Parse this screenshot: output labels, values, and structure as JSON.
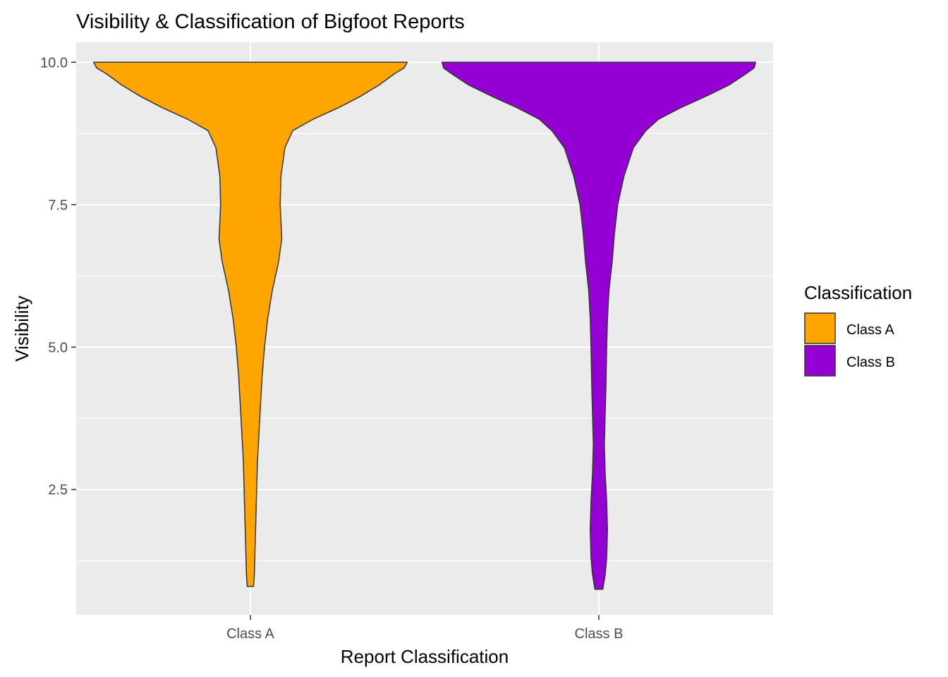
{
  "chart_data": {
    "type": "violin",
    "title": "Visibility & Classification of Bigfoot Reports",
    "xlabel": "Report Classification",
    "ylabel": "Visibility",
    "categories": [
      "Class A",
      "Class B"
    ],
    "ylim": [
      0.3,
      10.35
    ],
    "yticks": [
      2.5,
      5.0,
      7.5,
      10.0
    ],
    "ytick_labels": [
      "2.5",
      "5.0",
      "7.5",
      "10.0"
    ],
    "grid": true,
    "legend": {
      "title": "Classification",
      "placement": "right",
      "entries": [
        "Class A",
        "Class B"
      ]
    },
    "series": [
      {
        "name": "Class A",
        "color": "#FFA500",
        "range": [
          0.8,
          10.0
        ],
        "density_profile": [
          [
            0.8,
            0.02
          ],
          [
            1.0,
            0.025
          ],
          [
            1.5,
            0.03
          ],
          [
            2.0,
            0.035
          ],
          [
            2.5,
            0.04
          ],
          [
            3.0,
            0.045
          ],
          [
            3.5,
            0.055
          ],
          [
            4.0,
            0.065
          ],
          [
            4.5,
            0.075
          ],
          [
            5.0,
            0.09
          ],
          [
            5.5,
            0.11
          ],
          [
            6.0,
            0.14
          ],
          [
            6.5,
            0.18
          ],
          [
            6.9,
            0.2
          ],
          [
            7.5,
            0.19
          ],
          [
            8.0,
            0.195
          ],
          [
            8.5,
            0.22
          ],
          [
            8.8,
            0.27
          ],
          [
            9.0,
            0.4
          ],
          [
            9.2,
            0.56
          ],
          [
            9.4,
            0.7
          ],
          [
            9.6,
            0.82
          ],
          [
            9.8,
            0.92
          ],
          [
            9.9,
            0.98
          ],
          [
            10.0,
            1.0
          ]
        ]
      },
      {
        "name": "Class B",
        "color": "#9400D3",
        "range": [
          0.75,
          10.0
        ],
        "density_profile": [
          [
            0.75,
            0.025
          ],
          [
            1.0,
            0.04
          ],
          [
            1.3,
            0.05
          ],
          [
            1.8,
            0.055
          ],
          [
            2.3,
            0.05
          ],
          [
            2.8,
            0.04
          ],
          [
            3.3,
            0.035
          ],
          [
            3.8,
            0.04
          ],
          [
            4.3,
            0.045
          ],
          [
            5.0,
            0.05
          ],
          [
            5.5,
            0.055
          ],
          [
            6.0,
            0.065
          ],
          [
            6.5,
            0.085
          ],
          [
            7.0,
            0.1
          ],
          [
            7.5,
            0.12
          ],
          [
            8.0,
            0.16
          ],
          [
            8.5,
            0.22
          ],
          [
            8.8,
            0.3
          ],
          [
            9.0,
            0.38
          ],
          [
            9.2,
            0.52
          ],
          [
            9.4,
            0.68
          ],
          [
            9.6,
            0.83
          ],
          [
            9.8,
            0.94
          ],
          [
            9.9,
            0.99
          ],
          [
            10.0,
            1.0
          ]
        ]
      }
    ]
  }
}
